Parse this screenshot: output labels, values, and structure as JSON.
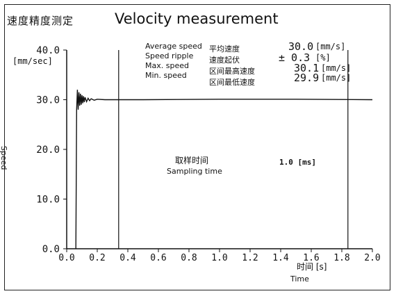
{
  "title_cn": "速度精度测定",
  "title_en": "Velocity measurement",
  "stats": [
    {
      "label_en": "Average speed",
      "label_cn": "平均速度",
      "value": "30.0",
      "unit": "[mm/s]"
    },
    {
      "label_en": "Speed ripple",
      "label_cn": "速度起伏",
      "value": "± 0.3",
      "unit": "[%]"
    },
    {
      "label_en": "Max. speed",
      "label_cn": "区间最高速度",
      "value": "30.1",
      "unit": "[mm/s]"
    },
    {
      "label_en": "Min. speed",
      "label_cn": "区间最低速度",
      "value": "29.9",
      "unit": "[mm/s]"
    }
  ],
  "sampling": {
    "label_cn": "取样时间",
    "label_en": "Sampling time",
    "value": "1.0 [ms]"
  },
  "chart_data": {
    "type": "line",
    "y_top_label": "40.0",
    "ylabel_unit": "[mm/sec]",
    "ylabel": "Speed",
    "xlabel_cn": "时间 [s]",
    "xlabel": "Time",
    "xlim": [
      0,
      2.0
    ],
    "ylim": [
      0,
      40
    ],
    "x_ticks": [
      "0.0",
      "0.2",
      "0.4",
      "0.6",
      "0.8",
      "1.0",
      "1.2",
      "1.4",
      "1.6",
      "1.8",
      "2.0"
    ],
    "y_ticks": [
      "0.0",
      "10.0",
      "20.0",
      "30.0",
      "40.0"
    ],
    "markers_x": [
      0.34,
      1.84
    ],
    "series": [
      {
        "x": [
          0.06,
          0.065,
          0.07,
          0.075,
          0.08,
          0.085,
          0.09,
          0.095,
          0.1,
          0.105,
          0.11,
          0.115,
          0.12,
          0.13,
          0.14,
          0.15,
          0.16,
          0.18,
          0.2,
          0.25,
          0.3,
          0.5,
          1.0,
          1.5,
          2.0
        ],
        "y": [
          0,
          28.0,
          32.0,
          28.0,
          31.5,
          28.8,
          31.2,
          29.0,
          30.9,
          29.3,
          30.7,
          29.5,
          30.5,
          29.6,
          30.3,
          29.8,
          30.2,
          29.9,
          30.1,
          30.0,
          30.0,
          30.0,
          30.1,
          30.1,
          30.0
        ]
      }
    ],
    "grid": false
  }
}
